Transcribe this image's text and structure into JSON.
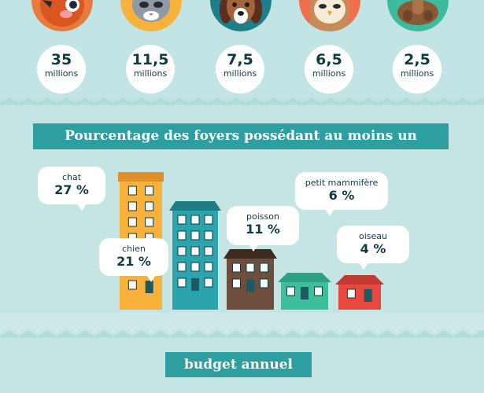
{
  "pets": [
    {
      "icon": "bird-icon",
      "color": "#e77b3e",
      "number": "35",
      "unit": "millions"
    },
    {
      "icon": "cat-icon",
      "color": "#f6b23b",
      "number": "11,5",
      "unit": "millions"
    },
    {
      "icon": "dog-icon",
      "color": "#1e7e8a",
      "number": "7,5",
      "unit": "millions"
    },
    {
      "icon": "owl-icon",
      "color": "#f0704e",
      "number": "6,5",
      "unit": "millions"
    },
    {
      "icon": "hamster-icon",
      "color": "#3dbb9c",
      "number": "2,5",
      "unit": "millions"
    }
  ],
  "section_title": "Pourcentage des foyers possédant au moins un",
  "footer_title": "budget annuel",
  "chart_data": {
    "type": "bar",
    "title": "Pourcentage des foyers possédant au moins un",
    "categories": [
      "chat",
      "chien",
      "poisson",
      "petit mammifère",
      "oiseau"
    ],
    "values": [
      27,
      21,
      11,
      6,
      4
    ],
    "value_labels": [
      "27 %",
      "21 %",
      "11 %",
      "6 %",
      "4 %"
    ],
    "colors": [
      "#f8b23b",
      "#2ba4ad",
      "#6e4e3c",
      "#3dbf9c",
      "#e94a40"
    ],
    "unit": "%",
    "grid": false,
    "legend": "none"
  }
}
